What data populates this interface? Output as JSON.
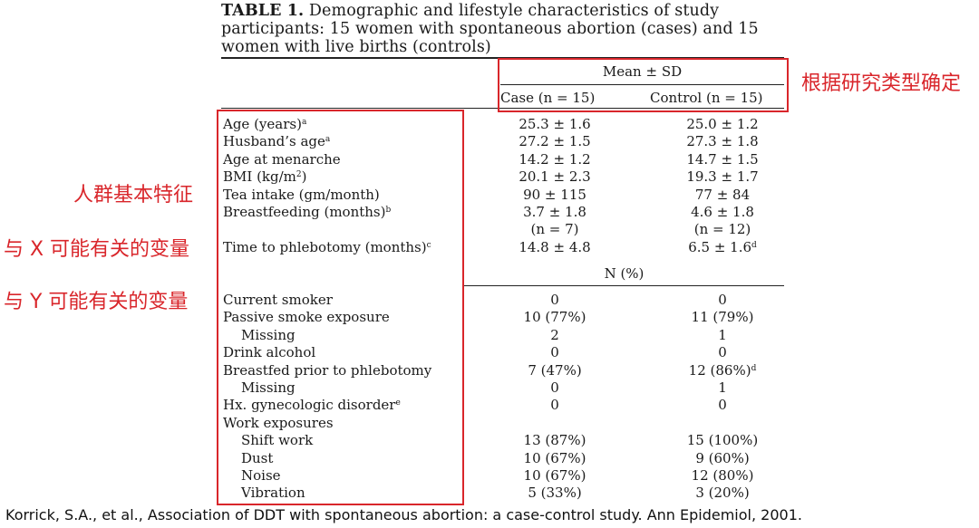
{
  "table": {
    "caption_prefix": "TABLE 1.",
    "caption_line1": "Demographic and lifestyle characteristics of study",
    "caption_line2": "participants: 15 women with spontaneous abortion (cases) and 15",
    "caption_line3": "women with live births (controls)",
    "header_mean_sd": "Mean ± SD",
    "header_case": "Case (n = 15)",
    "header_control": "Control (n = 15)",
    "header_n_pct": "N (%)",
    "rows": [
      {
        "label": "Age (years)",
        "sup": "a",
        "case": "25.3 ± 1.6",
        "control": "25.0 ± 1.2",
        "control_sup": ""
      },
      {
        "label": "Husband’s age",
        "sup": "a",
        "case": "27.2 ± 1.5",
        "control": "27.3 ± 1.8",
        "control_sup": ""
      },
      {
        "label": "Age at menarche",
        "sup": "",
        "case": "14.2 ± 1.2",
        "control": "14.7 ± 1.5",
        "control_sup": ""
      },
      {
        "label": "BMI (kg/m",
        "sup": "2",
        "label_tail": ")",
        "case": "20.1 ± 2.3",
        "control": "19.3 ± 1.7",
        "control_sup": ""
      },
      {
        "label": "Tea intake (gm/month)",
        "sup": "",
        "case": "90 ± 115",
        "control": "77 ± 84",
        "control_sup": ""
      },
      {
        "label": "Breastfeeding (months)",
        "sup": "b",
        "case": "3.7 ± 1.8",
        "control": "4.6 ± 1.8",
        "control_sup": ""
      },
      {
        "label": "",
        "sup": "",
        "case": "(n = 7)",
        "control": "(n = 12)",
        "control_sup": ""
      },
      {
        "label": "Time to phlebotomy (months)",
        "sup": "c",
        "case": "14.8 ± 4.8",
        "control": "6.5 ± 1.6",
        "control_sup": "d"
      }
    ],
    "rows2": [
      {
        "label": "Current smoker",
        "sup": "",
        "indent": false,
        "case": "0",
        "control": "0",
        "control_sup": ""
      },
      {
        "label": "Passive smoke exposure",
        "sup": "",
        "indent": false,
        "case": "10 (77%)",
        "control": "11 (79%)",
        "control_sup": ""
      },
      {
        "label": "Missing",
        "sup": "",
        "indent": true,
        "case": "2",
        "control": "1",
        "control_sup": ""
      },
      {
        "label": "Drink alcohol",
        "sup": "",
        "indent": false,
        "case": "0",
        "control": "0",
        "control_sup": ""
      },
      {
        "label": "Breastfed prior to phlebotomy",
        "sup": "",
        "indent": false,
        "case": "7 (47%)",
        "control": "12 (86%)",
        "control_sup": "d"
      },
      {
        "label": "Missing",
        "sup": "",
        "indent": true,
        "case": "0",
        "control": "1",
        "control_sup": ""
      },
      {
        "label": "Hx. gynecologic disorder",
        "sup": "e",
        "indent": false,
        "case": "0",
        "control": "0",
        "control_sup": ""
      },
      {
        "label": "Work exposures",
        "sup": "",
        "indent": false,
        "case": "",
        "control": "",
        "control_sup": ""
      },
      {
        "label": "Shift work",
        "sup": "",
        "indent": true,
        "case": "13 (87%)",
        "control": "15 (100%)",
        "control_sup": ""
      },
      {
        "label": "Dust",
        "sup": "",
        "indent": true,
        "case": "10 (67%)",
        "control": "9 (60%)",
        "control_sup": ""
      },
      {
        "label": "Noise",
        "sup": "",
        "indent": true,
        "case": "10 (67%)",
        "control": "12 (80%)",
        "control_sup": ""
      },
      {
        "label": "Vibration",
        "sup": "",
        "indent": true,
        "case": "5 (33%)",
        "control": "3 (20%)",
        "control_sup": ""
      }
    ]
  },
  "annotations": {
    "header_note": "根据研究类型确定",
    "note_population": "人群基本特征",
    "note_x": "与 X 可能有关的变量",
    "note_y": "与 Y 可能有关的变量",
    "accent_color": "#d9262b"
  },
  "citation": "Korrick, S.A., et al., Association of DDT with spontaneous abortion: a case-control study. Ann Epidemiol, 2001."
}
